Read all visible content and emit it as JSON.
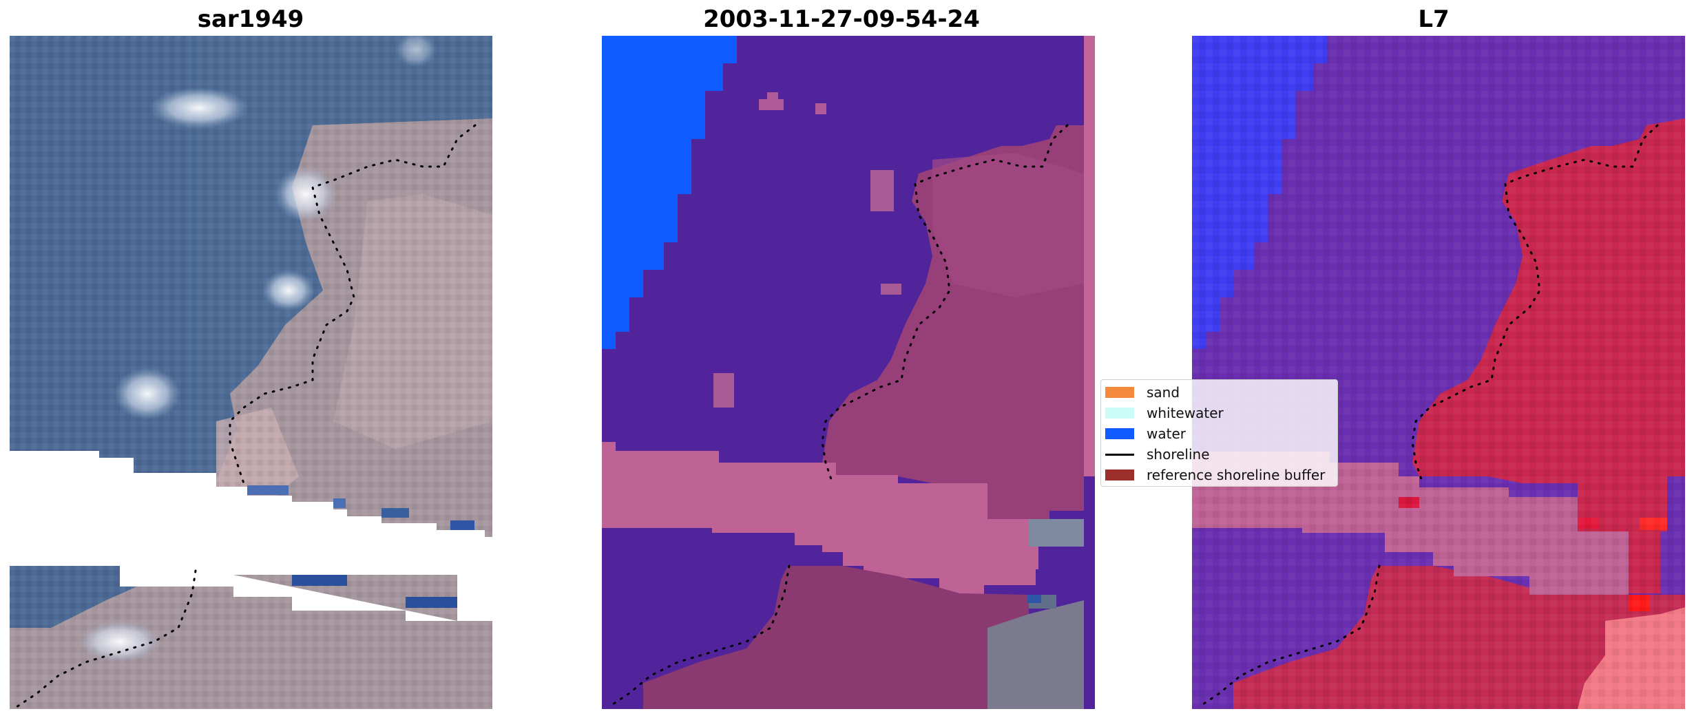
{
  "panels": [
    {
      "title": "sar1949",
      "kind": "rgb"
    },
    {
      "title": "2003-11-27-09-54-24",
      "kind": "classified"
    },
    {
      "title": "L7",
      "kind": "index"
    }
  ],
  "legend": {
    "items": [
      {
        "label": "sand",
        "color": "#f68a3c",
        "type": "patch"
      },
      {
        "label": "whitewater",
        "color": "#ccfcf8",
        "type": "patch"
      },
      {
        "label": "water",
        "color": "#0f5bff",
        "type": "patch"
      },
      {
        "label": "shoreline",
        "color": "#000000",
        "type": "line"
      },
      {
        "label": "reference shoreline buffer",
        "color": "#9c2f2c",
        "type": "patch"
      }
    ]
  },
  "colors": {
    "background": "#ffffff",
    "sea_rgb": "#4f6f99",
    "land_rgb": "#a99aa6",
    "class_water_other": "#52249c",
    "class_water_blue": "#0e5bff",
    "buffer_pink": "#bf6396",
    "land_class": "#8c3a74",
    "index_water": "#6a2fb0",
    "index_land": "#c9274e"
  }
}
